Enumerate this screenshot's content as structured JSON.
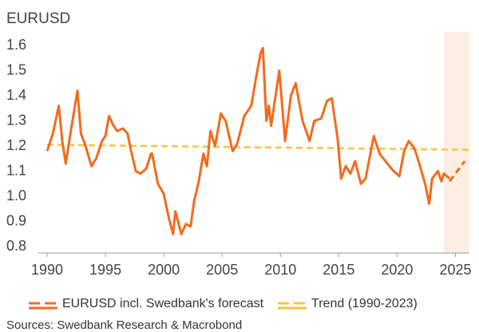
{
  "chart_data": {
    "type": "line",
    "subtitle": "EURUSD",
    "source": "Sources: Swedbank Research & Macrobond",
    "xlim": [
      1990,
      2026.2
    ],
    "xticks": [
      1990,
      1995,
      2000,
      2005,
      2010,
      2015,
      2020,
      2025
    ],
    "ylim": [
      0.8,
      1.6
    ],
    "yticks": [
      {
        "value": 0.8,
        "label": "0.8"
      },
      {
        "value": 0.9,
        "label": "0.9"
      },
      {
        "value": 1.0,
        "label": "1.0"
      },
      {
        "value": 1.1,
        "label": "1.1"
      },
      {
        "value": 1.2,
        "label": "1.2"
      },
      {
        "value": 1.3,
        "label": "1.3"
      },
      {
        "value": 1.4,
        "label": "1.4"
      },
      {
        "value": 1.5,
        "label": "1.5"
      },
      {
        "value": 1.6,
        "label": "1.6"
      }
    ],
    "shaded_range": [
      2024,
      2026.2
    ],
    "shade_color": "#fdeee4",
    "series": [
      {
        "name": "EURUSD incl. Swedbank's forecast",
        "color": "#f26b1d",
        "dash": false,
        "x": [
          1990.0,
          1990.5,
          1991.0,
          1991.3,
          1991.6,
          1992.0,
          1992.6,
          1992.9,
          1993.3,
          1993.8,
          1994.2,
          1994.7,
          1995.0,
          1995.3,
          1995.7,
          1996.0,
          1996.5,
          1996.9,
          1997.2,
          1997.6,
          1998.0,
          1998.5,
          1998.9,
          1999.0,
          1999.5,
          2000.0,
          2000.4,
          2000.8,
          2001.0,
          2001.5,
          2001.9,
          2002.3,
          2002.6,
          2003.0,
          2003.4,
          2003.7,
          2004.0,
          2004.4,
          2004.9,
          2005.3,
          2005.9,
          2006.3,
          2006.9,
          2007.5,
          2007.9,
          2008.3,
          2008.5,
          2008.8,
          2009.0,
          2009.2,
          2009.9,
          2010.4,
          2010.9,
          2011.3,
          2011.9,
          2012.5,
          2012.9,
          2013.5,
          2014.0,
          2014.4,
          2014.9,
          2015.2,
          2015.6,
          2016.0,
          2016.4,
          2016.9,
          2017.3,
          2018.0,
          2018.5,
          2019.0,
          2019.7,
          2020.2,
          2020.6,
          2021.0,
          2021.5,
          2021.9,
          2022.4,
          2022.75,
          2023.0,
          2023.5,
          2023.8,
          2024.0,
          2024.5
        ],
        "values": [
          1.18,
          1.25,
          1.36,
          1.22,
          1.13,
          1.25,
          1.42,
          1.25,
          1.2,
          1.12,
          1.15,
          1.22,
          1.24,
          1.32,
          1.28,
          1.26,
          1.27,
          1.25,
          1.18,
          1.1,
          1.09,
          1.11,
          1.17,
          1.17,
          1.05,
          1.01,
          0.92,
          0.85,
          0.94,
          0.85,
          0.89,
          0.88,
          0.98,
          1.06,
          1.17,
          1.12,
          1.26,
          1.2,
          1.33,
          1.3,
          1.18,
          1.21,
          1.32,
          1.36,
          1.47,
          1.57,
          1.59,
          1.3,
          1.36,
          1.28,
          1.5,
          1.22,
          1.4,
          1.45,
          1.3,
          1.22,
          1.3,
          1.31,
          1.38,
          1.39,
          1.23,
          1.07,
          1.12,
          1.09,
          1.14,
          1.05,
          1.07,
          1.24,
          1.17,
          1.14,
          1.1,
          1.08,
          1.18,
          1.22,
          1.19,
          1.13,
          1.05,
          0.97,
          1.07,
          1.1,
          1.06,
          1.09,
          1.07
        ],
        "forecast": {
          "x": [
            2024.5,
            2025.8
          ],
          "values": [
            1.06,
            1.14
          ]
        }
      },
      {
        "name": "Trend (1990-2023)",
        "color": "#f6c343",
        "dash": true,
        "x": [
          1990,
          2026.2
        ],
        "values": [
          1.205,
          1.185
        ]
      }
    ]
  }
}
